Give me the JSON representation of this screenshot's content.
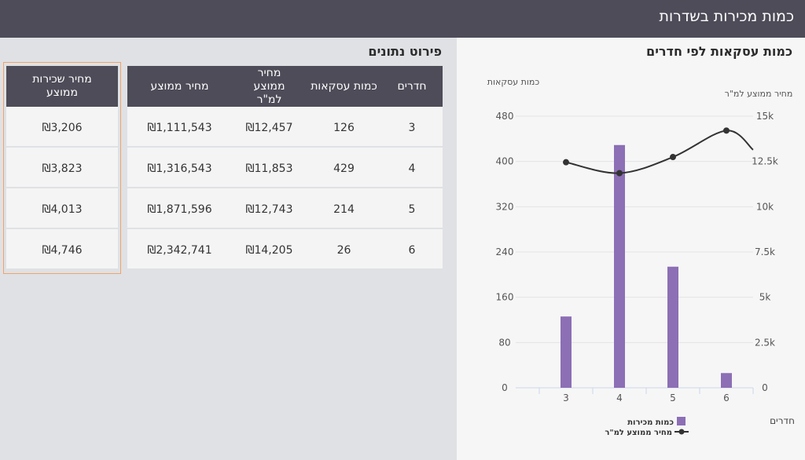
{
  "header": {
    "title": "כמות מכירות בשדרות"
  },
  "chart_panel": {
    "title": "כמות עסקאות לפי חדרים"
  },
  "table_panel": {
    "title": "פירוט נתונים",
    "columns": [
      "חדרים",
      "כמות עסקאות",
      "מחיר ממוצע למ\"ר",
      "מחיר ממוצע"
    ],
    "side_column": "מחיר שכירות ממוצע",
    "rows": [
      [
        "3",
        "126",
        "₪12,457",
        "₪1,111,543"
      ],
      [
        "4",
        "429",
        "₪11,853",
        "₪1,316,543"
      ],
      [
        "5",
        "214",
        "₪12,743",
        "₪1,871,596"
      ],
      [
        "6",
        "26",
        "₪14,205",
        "₪2,342,741"
      ]
    ],
    "side_rows": [
      "₪3,206",
      "₪3,823",
      "₪4,013",
      "₪4,746"
    ]
  },
  "colors": {
    "header_bg": "#4d4c58",
    "bar": "#8c6fb5",
    "line": "#333333",
    "highlight_border": "#f0a36b"
  },
  "chart_data": {
    "type": "bar",
    "title": "",
    "categories": [
      "3",
      "4",
      "5",
      "6"
    ],
    "xlabel": "חדרים",
    "y_left_label": "כמות עסקאות",
    "y_right_label": "מחיר ממוצע למ\"ר",
    "y_left_range": [
      0,
      480
    ],
    "y_left_ticks": [
      "0",
      "80",
      "160",
      "240",
      "320",
      "400",
      "480"
    ],
    "y_right_range": [
      0,
      15000
    ],
    "y_right_ticks": [
      "0",
      "2.5k",
      "5k",
      "7.5k",
      "10k",
      "12.5k",
      "15k"
    ],
    "grid": true,
    "legend_position": "bottom",
    "series": [
      {
        "name": "כמות מכירות",
        "type": "bar",
        "axis": "left",
        "values": [
          126,
          429,
          214,
          26
        ]
      },
      {
        "name": "מחיר ממוצע למ\"ר",
        "type": "line",
        "axis": "right",
        "values": [
          12457,
          11853,
          12743,
          14205
        ]
      }
    ]
  }
}
